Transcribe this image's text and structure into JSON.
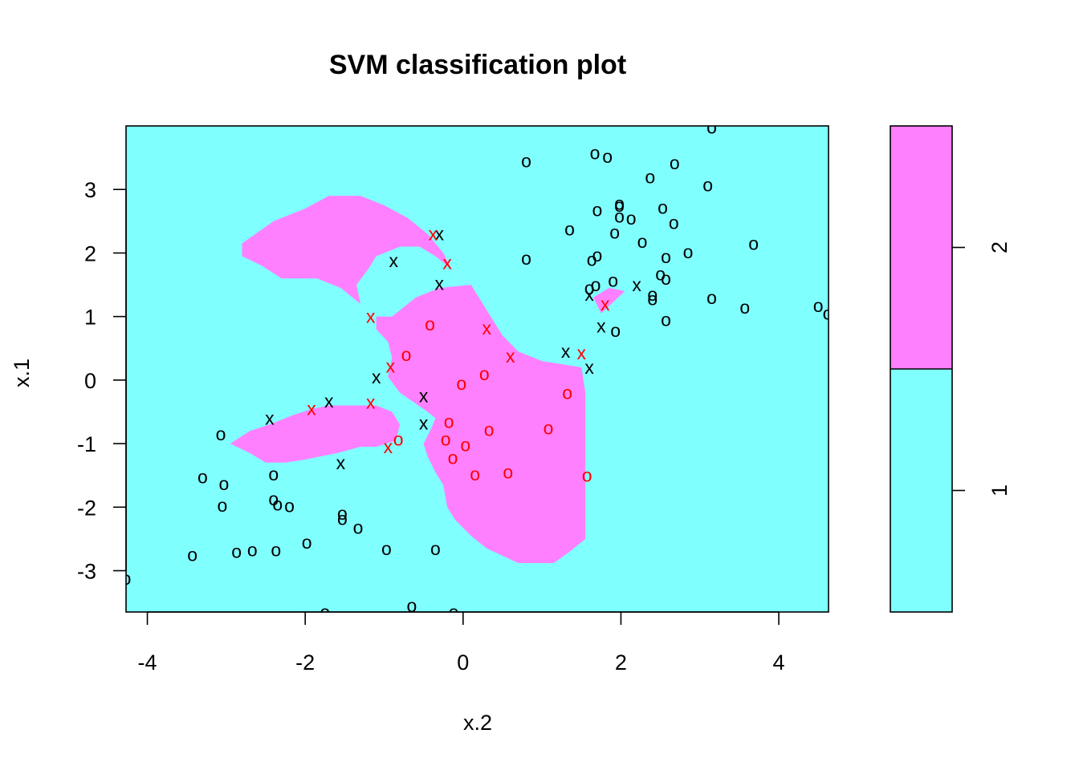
{
  "chart_data": {
    "type": "scatter",
    "title": "SVM classification plot",
    "xlabel": "x.2",
    "ylabel": "x.1",
    "xlim": [
      -4.27,
      4.63
    ],
    "ylim": [
      -3.65,
      4.0
    ],
    "x_ticks": [
      -4,
      -2,
      0,
      2,
      4
    ],
    "y_ticks": [
      -3,
      -2,
      -1,
      0,
      1,
      2,
      3
    ],
    "grid": false,
    "colors": {
      "class1": "#80FFFF",
      "class2": "#FF80FF",
      "support_vector": "#000000",
      "other": "#FF0000"
    },
    "legend": {
      "placement": "right",
      "type": "color key",
      "levels": [
        "1",
        "2"
      ],
      "boundary_fraction": 0.5
    },
    "class2_regions": [
      [
        [
          -1.1,
          1.0
        ],
        [
          -0.9,
          1.0
        ],
        [
          -0.6,
          1.3
        ],
        [
          -0.3,
          1.45
        ],
        [
          0.1,
          1.5
        ],
        [
          0.3,
          1.1
        ],
        [
          0.5,
          0.7
        ],
        [
          0.7,
          0.45
        ],
        [
          1.0,
          0.3
        ],
        [
          1.5,
          0.2
        ],
        [
          1.55,
          -0.2
        ],
        [
          1.55,
          -1.5
        ],
        [
          1.55,
          -2.5
        ],
        [
          1.35,
          -2.7
        ],
        [
          1.15,
          -2.88
        ],
        [
          0.7,
          -2.88
        ],
        [
          0.3,
          -2.65
        ],
        [
          0.1,
          -2.45
        ],
        [
          -0.1,
          -2.2
        ],
        [
          -0.2,
          -2.0
        ],
        [
          -0.25,
          -1.65
        ],
        [
          -0.35,
          -1.45
        ],
        [
          -0.45,
          -1.2
        ],
        [
          -0.5,
          -1.0
        ],
        [
          -0.4,
          -0.75
        ],
        [
          -0.35,
          -0.6
        ],
        [
          -0.45,
          -0.5
        ],
        [
          -0.8,
          -0.2
        ],
        [
          -0.95,
          0.05
        ],
        [
          -0.9,
          0.35
        ],
        [
          -0.95,
          0.6
        ],
        [
          -1.1,
          0.8
        ]
      ],
      [
        [
          -2.95,
          -1.0
        ],
        [
          -2.7,
          -0.8
        ],
        [
          -2.45,
          -0.7
        ],
        [
          -2.15,
          -0.55
        ],
        [
          -1.9,
          -0.45
        ],
        [
          -1.7,
          -0.4
        ],
        [
          -1.4,
          -0.4
        ],
        [
          -1.1,
          -0.4
        ],
        [
          -0.9,
          -0.5
        ],
        [
          -0.8,
          -0.7
        ],
        [
          -0.85,
          -0.95
        ],
        [
          -1.1,
          -1.05
        ],
        [
          -1.3,
          -1.05
        ],
        [
          -1.6,
          -1.15
        ],
        [
          -1.8,
          -1.2
        ],
        [
          -2.0,
          -1.25
        ],
        [
          -2.25,
          -1.3
        ],
        [
          -2.5,
          -1.3
        ],
        [
          -2.7,
          -1.15
        ]
      ],
      [
        [
          -2.8,
          2.15
        ],
        [
          -2.4,
          2.5
        ],
        [
          -2.0,
          2.7
        ],
        [
          -1.7,
          2.9
        ],
        [
          -1.3,
          2.9
        ],
        [
          -1.0,
          2.75
        ],
        [
          -0.7,
          2.55
        ],
        [
          -0.45,
          2.3
        ],
        [
          -0.25,
          2.0
        ],
        [
          -0.15,
          1.75
        ],
        [
          0.1,
          1.5
        ],
        [
          -0.3,
          1.45
        ],
        [
          -0.6,
          1.3
        ],
        [
          -0.9,
          1.0
        ],
        [
          -1.1,
          1.0
        ],
        [
          -1.3,
          1.2
        ],
        [
          -1.55,
          1.45
        ],
        [
          -1.85,
          1.6
        ],
        [
          -2.3,
          1.6
        ],
        [
          -2.55,
          1.8
        ],
        [
          -2.8,
          1.95
        ]
      ],
      [
        [
          1.75,
          1.05
        ],
        [
          2.05,
          1.4
        ],
        [
          1.85,
          1.45
        ],
        [
          1.65,
          1.3
        ]
      ]
    ],
    "class1_holes": [
      [
        [
          -1.35,
          1.5
        ],
        [
          -1.2,
          1.75
        ],
        [
          -1.1,
          1.95
        ],
        [
          -0.8,
          2.1
        ],
        [
          -0.55,
          2.1
        ],
        [
          -0.35,
          1.95
        ],
        [
          -0.15,
          1.75
        ],
        [
          0.1,
          1.5
        ],
        [
          -0.3,
          1.45
        ],
        [
          -0.6,
          1.3
        ],
        [
          -0.9,
          1.0
        ],
        [
          -1.1,
          1.0
        ],
        [
          -1.3,
          1.2
        ]
      ],
      [
        [
          -0.95,
          -0.25
        ],
        [
          -0.8,
          -0.2
        ],
        [
          -0.45,
          -0.5
        ],
        [
          -0.35,
          -0.6
        ],
        [
          -0.4,
          -0.75
        ],
        [
          -0.5,
          -1.0
        ],
        [
          -0.85,
          -0.95
        ],
        [
          -0.8,
          -0.7
        ],
        [
          -0.9,
          -0.5
        ]
      ]
    ],
    "series": [
      {
        "symbol": "x",
        "color": "#000000",
        "points": [
          [
            -0.3,
            2.3
          ],
          [
            -0.88,
            1.88
          ],
          [
            -0.3,
            1.52
          ],
          [
            1.6,
            1.35
          ],
          [
            2.2,
            1.5
          ],
          [
            1.75,
            0.85
          ],
          [
            1.3,
            0.45
          ],
          [
            1.6,
            0.2
          ],
          [
            -1.1,
            0.05
          ],
          [
            -0.5,
            -0.25
          ],
          [
            -0.5,
            -0.68
          ],
          [
            -1.7,
            -0.33
          ],
          [
            -2.45,
            -0.6
          ],
          [
            -1.55,
            -1.3
          ]
        ]
      },
      {
        "symbol": "x",
        "color": "#FF0000",
        "points": [
          [
            -0.38,
            2.3
          ],
          [
            -0.2,
            1.85
          ],
          [
            -1.17,
            1.0
          ],
          [
            0.3,
            0.82
          ],
          [
            0.6,
            0.38
          ],
          [
            1.5,
            0.43
          ],
          [
            1.8,
            1.2
          ],
          [
            -0.92,
            0.22
          ],
          [
            -1.17,
            -0.35
          ],
          [
            -1.92,
            -0.45
          ],
          [
            -0.95,
            -1.05
          ]
        ]
      },
      {
        "symbol": "o",
        "color": "#FF0000",
        "points": [
          [
            -0.42,
            0.88
          ],
          [
            -0.72,
            0.4
          ],
          [
            0.27,
            0.1
          ],
          [
            -0.02,
            -0.05
          ],
          [
            1.32,
            -0.2
          ],
          [
            -0.18,
            -0.65
          ],
          [
            -0.82,
            -0.93
          ],
          [
            0.33,
            -0.78
          ],
          [
            1.08,
            -0.75
          ],
          [
            -0.22,
            -0.93
          ],
          [
            0.03,
            -1.02
          ],
          [
            -0.13,
            -1.22
          ],
          [
            0.15,
            -1.48
          ],
          [
            0.57,
            -1.45
          ],
          [
            1.57,
            -1.5
          ]
        ]
      },
      {
        "symbol": "o",
        "color": "#000000",
        "points": [
          [
            0.8,
            3.45
          ],
          [
            1.67,
            3.58
          ],
          [
            1.83,
            3.52
          ],
          [
            2.37,
            3.2
          ],
          [
            2.68,
            3.42
          ],
          [
            3.1,
            3.07
          ],
          [
            3.15,
            3.98
          ],
          [
            1.98,
            2.78
          ],
          [
            1.98,
            2.75
          ],
          [
            1.7,
            2.68
          ],
          [
            1.98,
            2.58
          ],
          [
            2.13,
            2.55
          ],
          [
            2.53,
            2.72
          ],
          [
            2.67,
            2.48
          ],
          [
            1.35,
            2.38
          ],
          [
            1.92,
            2.33
          ],
          [
            2.27,
            2.18
          ],
          [
            3.68,
            2.15
          ],
          [
            0.8,
            1.92
          ],
          [
            1.63,
            1.9
          ],
          [
            1.7,
            1.97
          ],
          [
            2.85,
            2.02
          ],
          [
            2.57,
            1.94
          ],
          [
            1.9,
            1.57
          ],
          [
            1.68,
            1.5
          ],
          [
            1.6,
            1.45
          ],
          [
            2.5,
            1.67
          ],
          [
            2.57,
            1.6
          ],
          [
            2.4,
            1.35
          ],
          [
            2.4,
            1.28
          ],
          [
            3.15,
            1.3
          ],
          [
            3.57,
            1.15
          ],
          [
            4.5,
            1.17
          ],
          [
            4.62,
            1.05
          ],
          [
            2.57,
            0.95
          ],
          [
            1.93,
            0.78
          ],
          [
            -3.07,
            -0.85
          ],
          [
            -3.3,
            -1.52
          ],
          [
            -3.03,
            -1.63
          ],
          [
            -2.4,
            -1.48
          ],
          [
            -2.4,
            -1.87
          ],
          [
            -2.35,
            -1.95
          ],
          [
            -2.2,
            -1.98
          ],
          [
            -3.05,
            -1.97
          ],
          [
            -1.53,
            -2.1
          ],
          [
            -1.53,
            -2.18
          ],
          [
            -1.33,
            -2.32
          ],
          [
            -1.98,
            -2.55
          ],
          [
            -3.43,
            -2.75
          ],
          [
            -2.87,
            -2.7
          ],
          [
            -2.67,
            -2.67
          ],
          [
            -2.37,
            -2.67
          ],
          [
            -0.97,
            -2.65
          ],
          [
            -0.35,
            -2.65
          ],
          [
            -4.27,
            -3.12
          ],
          [
            -0.65,
            -3.55
          ],
          [
            -1.75,
            -3.65
          ],
          [
            -0.12,
            -3.65
          ]
        ]
      }
    ]
  }
}
